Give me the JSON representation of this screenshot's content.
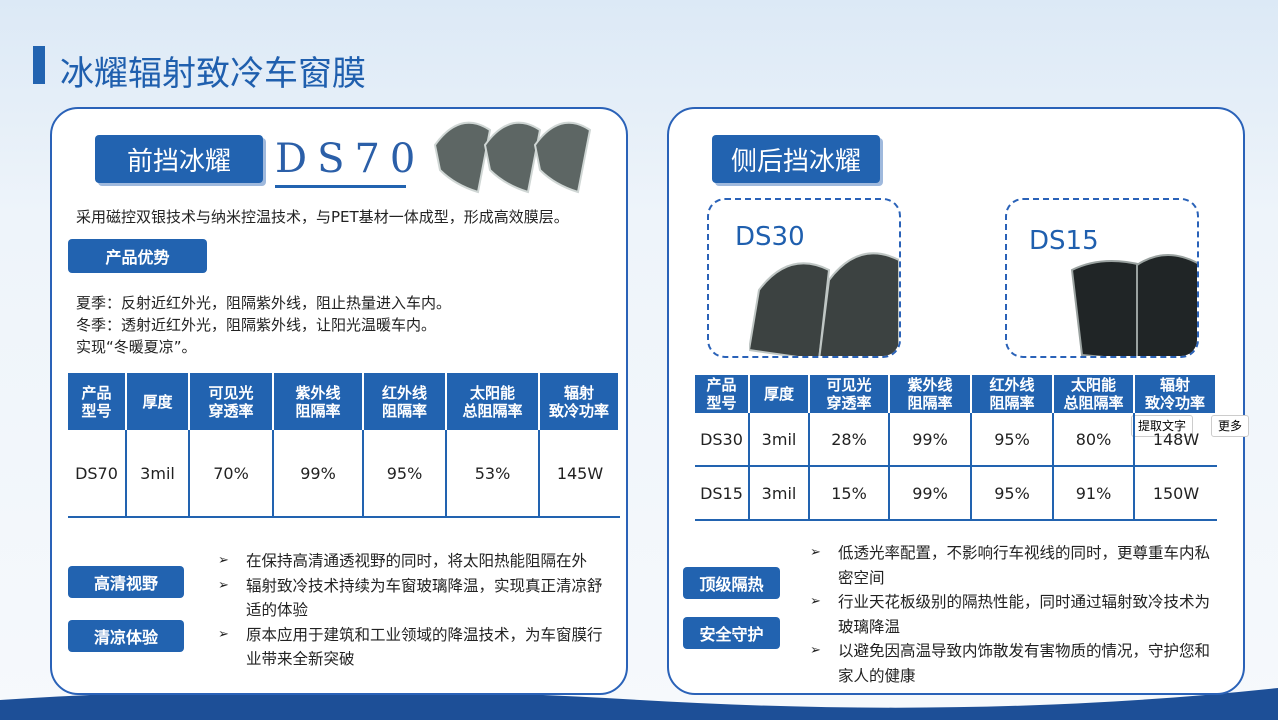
{
  "title": "冰耀辐射致冷车窗膜",
  "left": {
    "tag": "前挡冰耀",
    "model": "DS70",
    "description": "采用磁控双银技术与纳米控温技术，与PET基材一体成型，形成高效膜层。",
    "advantage_label": "产品优势",
    "advantages": [
      "夏季：反射近红外光，阻隔紫外线，阻止热量进入车内。",
      "冬季：透射近红外光，阻隔紫外线，让阳光温暖车内。",
      "实现“冬暖夏凉”。"
    ],
    "table": {
      "headers": [
        [
          "产品",
          "型号"
        ],
        [
          "厚度"
        ],
        [
          "可见光",
          "穿透率"
        ],
        [
          "紫外线",
          "阻隔率"
        ],
        [
          "红外线",
          "阻隔率"
        ],
        [
          "太阳能",
          "总阻隔率"
        ],
        [
          "辐射",
          "致冷功率"
        ]
      ],
      "rows": [
        [
          "DS70",
          "3mil",
          "70%",
          "99%",
          "95%",
          "53%",
          "145W"
        ]
      ]
    },
    "feature_labels": [
      "高清视野",
      "清凉体验"
    ],
    "bullets": [
      "在保持高清通透视野的同时，将太阳热能阻隔在外",
      "辐射致冷技术持续为车窗玻璃降温，实现真正清凉舒适的体验",
      "原本应用于建筑和工业领域的降温技术，为车窗膜行业带来全新突破"
    ]
  },
  "right": {
    "tag": "侧后挡冰耀",
    "products": [
      "DS30",
      "DS15"
    ],
    "table": {
      "headers": [
        [
          "产品",
          "型号"
        ],
        [
          "厚度"
        ],
        [
          "可见光",
          "穿透率"
        ],
        [
          "紫外线",
          "阻隔率"
        ],
        [
          "红外线",
          "阻隔率"
        ],
        [
          "太阳能",
          "总阻隔率"
        ],
        [
          "辐射",
          "致冷功率"
        ]
      ],
      "rows": [
        [
          "DS30",
          "3mil",
          "28%",
          "99%",
          "95%",
          "80%",
          "148W"
        ],
        [
          "DS15",
          "3mil",
          "15%",
          "99%",
          "95%",
          "91%",
          "150W"
        ]
      ]
    },
    "feature_labels": [
      "顶级隔热",
      "安全守护"
    ],
    "bullets": [
      "低透光率配置，不影响行车视线的同时，更尊重车内私密空间",
      "行业天花板级别的隔热性能，同时通过辐射致冷技术为玻璃降温",
      "以避免因高温导致内饰散发有害物质的情况，守护您和家人的健康"
    ]
  },
  "toolbar": {
    "extract": "提取文字",
    "more": "更多"
  }
}
